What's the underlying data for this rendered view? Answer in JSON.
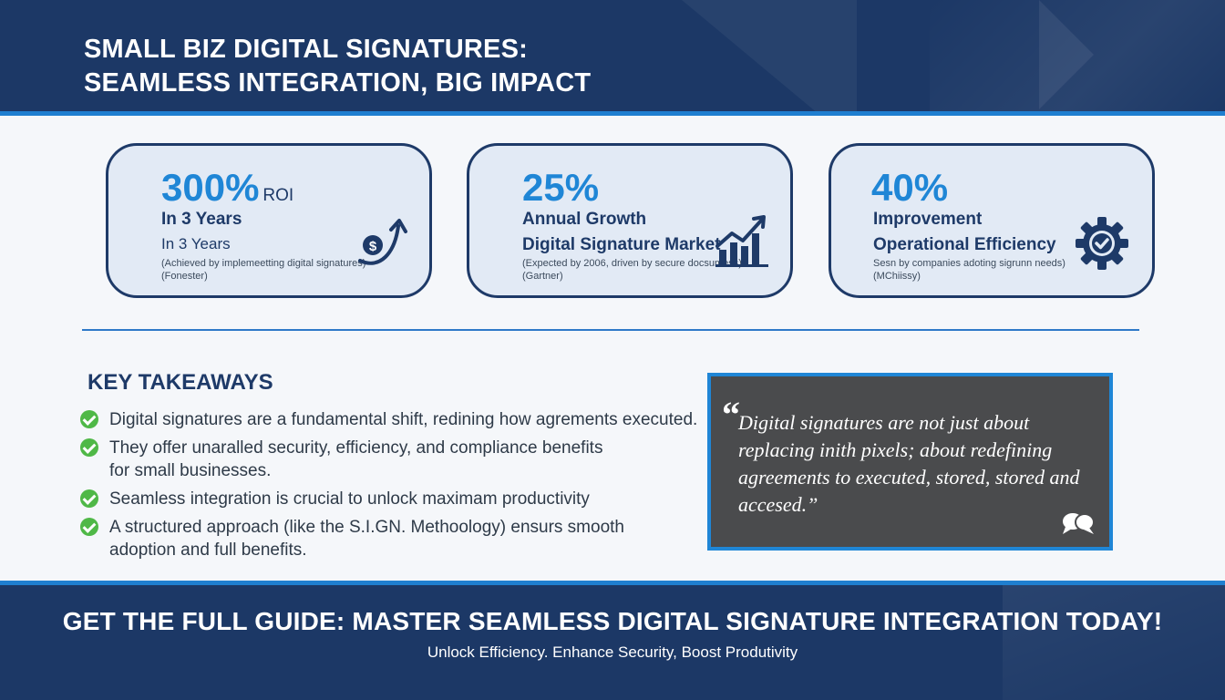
{
  "header": {
    "title_line1": "SMALL BIZ DIGITAL SIGNATURES:",
    "title_line2": "SEAMLESS INTEGRATION, BIG IMPACT"
  },
  "stats": [
    {
      "value": "300%",
      "value_suffix": "ROI",
      "line1": "In 3 Years",
      "line2": "In 3 Years",
      "note1": "(Achieved by implemeetting digital signatures)",
      "note2": "(Fonester)",
      "icon": "dollar-growth-arrow-icon"
    },
    {
      "value": "25%",
      "value_suffix": "",
      "line1": "Annual Growth",
      "line2": "Digital Signature Market",
      "note1": "(Expected by 2006, driven by secure docsumess)",
      "note2": "(Gartner)",
      "icon": "bar-chart-growth-icon"
    },
    {
      "value": "40%",
      "value_suffix": "",
      "line1": "Improvement",
      "line2": "Operational Efficiency",
      "note1": "Sesn by companies adoting sigrunn needs)",
      "note2": "(MChiissy)",
      "icon": "gear-check-icon"
    }
  ],
  "key_takeaways": {
    "title": "KEY TAKEAWAYS",
    "items": [
      "Digital signatures are a fundamental shift, redining how agrements executed.",
      "They offer unaralled security, efficiency, and compliance benefits for small businesses.",
      "Seamless integration is crucial to unlock maximam productivity",
      "A structured approach (like the S.I.GN. Methoology) ensurs smooth adoption and full benefits."
    ]
  },
  "quote": {
    "mark": "“",
    "text": "Digital signatures are not just about replacing inith pixels; about redefining agreements to executed, stored, stored and accesed.”"
  },
  "footer": {
    "cta": "GET THE FULL GUIDE: MASTER SEAMLESS DIGITAL SIGNATURE INTEGRATION TODAY!",
    "subtitle": "Unlock Efficiency. Enhance Security, Boost Produtivity"
  },
  "colors": {
    "navy": "#1c3866",
    "accent_blue": "#1f86d6",
    "card_bg": "#e2eaf5",
    "check_green": "#4fb847",
    "quote_bg": "#4a4b4d"
  }
}
